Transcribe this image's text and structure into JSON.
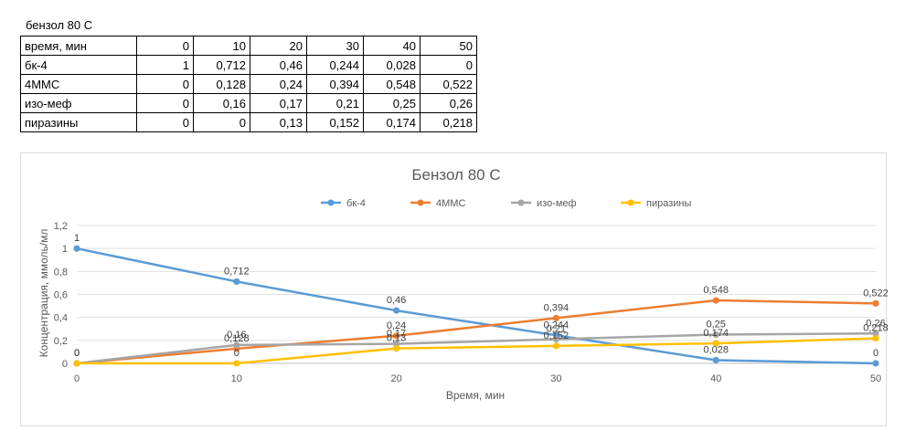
{
  "sheet": {
    "title": "бензол 80 С",
    "rows": [
      {
        "label": "время, мин",
        "values": [
          "0",
          "10",
          "20",
          "30",
          "40",
          "50"
        ]
      },
      {
        "label": "бк-4",
        "values": [
          "1",
          "0,712",
          "0,46",
          "0,244",
          "0,028",
          "0"
        ]
      },
      {
        "label": "4ММС",
        "values": [
          "0",
          "0,128",
          "0,24",
          "0,394",
          "0,548",
          "0,522"
        ]
      },
      {
        "label": "изо-меф",
        "values": [
          "0",
          "0,16",
          "0,17",
          "0,21",
          "0,25",
          "0,26"
        ]
      },
      {
        "label": "пиразины",
        "values": [
          "0",
          "0",
          "0,13",
          "0,152",
          "0,174",
          "0,218"
        ]
      }
    ]
  },
  "chart_data": {
    "type": "line",
    "title": "Бензол 80 С",
    "xlabel": "Время, мин",
    "ylabel": "Концентрация, ммоль/мл",
    "x": [
      0,
      10,
      20,
      30,
      40,
      50
    ],
    "xticks": [
      "0",
      "10",
      "20",
      "30",
      "40",
      "50"
    ],
    "ylim": [
      0,
      1.2
    ],
    "yticks": [
      "0",
      "0,2",
      "0,4",
      "0,6",
      "0,8",
      "1",
      "1,2"
    ],
    "grid": true,
    "legend": "top",
    "series": [
      {
        "name": "бк-4",
        "color": "#5b9bd5",
        "values": [
          1,
          0.712,
          0.46,
          0.244,
          0.028,
          0
        ],
        "labels": [
          "1",
          "0,712",
          "0,46",
          "0,244",
          "0,028",
          "0"
        ]
      },
      {
        "name": "4ММС",
        "color": "#ed7d31",
        "values": [
          0,
          0.128,
          0.24,
          0.394,
          0.548,
          0.522
        ],
        "labels": [
          "0",
          "0,128",
          "0,24",
          "0,394",
          "0,548",
          "0,522"
        ]
      },
      {
        "name": "изо-меф",
        "color": "#a5a5a5",
        "values": [
          0,
          0.16,
          0.17,
          0.21,
          0.25,
          0.26
        ],
        "labels": [
          "0",
          "0,16",
          "0,17",
          "0,21",
          "0,25",
          "0,26"
        ]
      },
      {
        "name": "пиразины",
        "color": "#ffc000",
        "values": [
          0,
          0,
          0.13,
          0.152,
          0.174,
          0.218
        ],
        "labels": [
          "0",
          "0",
          "0,13",
          "0,152",
          "0,174",
          "0,218"
        ]
      }
    ]
  }
}
